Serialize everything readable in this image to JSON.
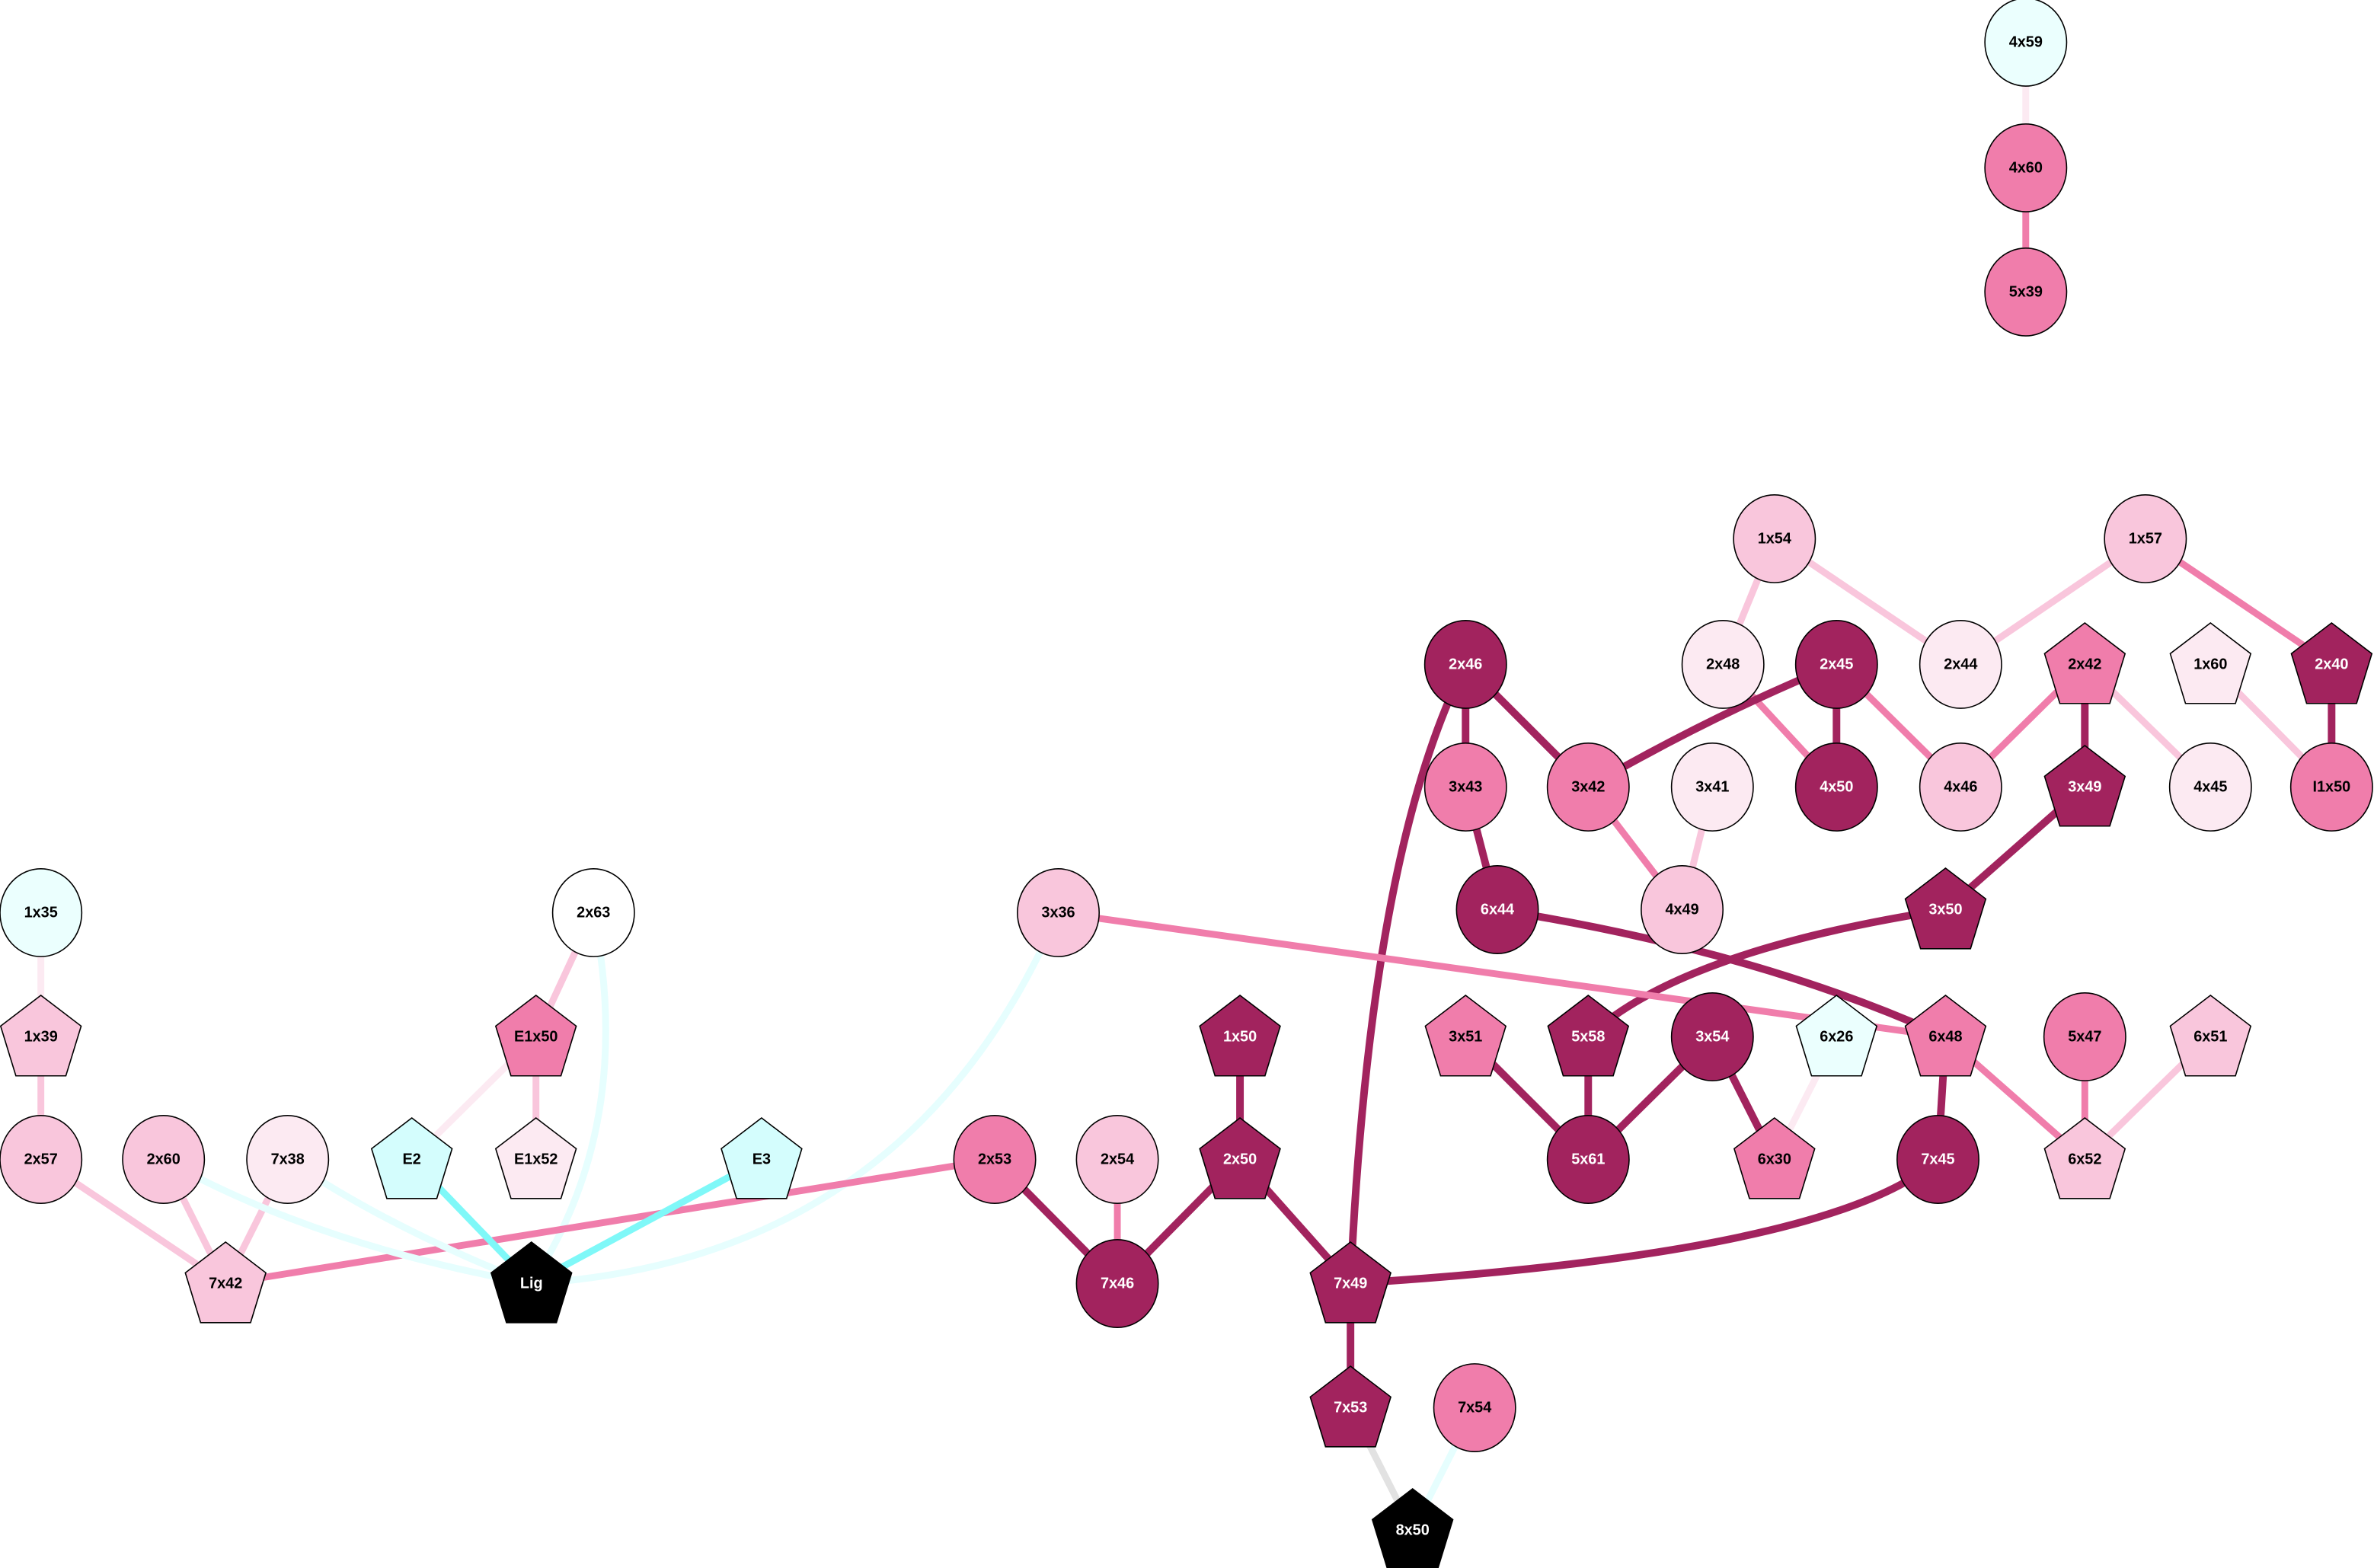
{
  "palette": {
    "dark": "#a2235e",
    "mid": "#f07dab",
    "light": "#f9c6dc",
    "vlight": "#fceaf2",
    "cyanlight": "#ebfffe",
    "cyan": "#d4fdfd",
    "cyanedge": "#7ff8f8",
    "palecyan": "#e6fefe",
    "white": "#ffffff",
    "black": "#000000",
    "grey": "#e2e2e2"
  },
  "nodes": [
    {
      "id": "4x59",
      "shape": "circle",
      "fill": "cyanlight"
    },
    {
      "id": "4x60",
      "shape": "circle",
      "fill": "mid"
    },
    {
      "id": "5x39",
      "shape": "circle",
      "fill": "mid"
    },
    {
      "id": "1x54",
      "shape": "circle",
      "fill": "light"
    },
    {
      "id": "1x57",
      "shape": "circle",
      "fill": "light"
    },
    {
      "id": "2x46",
      "shape": "circle",
      "fill": "dark"
    },
    {
      "id": "2x48",
      "shape": "circle",
      "fill": "vlight"
    },
    {
      "id": "2x45",
      "shape": "circle",
      "fill": "dark"
    },
    {
      "id": "2x44",
      "shape": "circle",
      "fill": "vlight"
    },
    {
      "id": "2x42",
      "shape": "pentagon",
      "fill": "mid"
    },
    {
      "id": "1x60",
      "shape": "pentagon",
      "fill": "vlight"
    },
    {
      "id": "2x40",
      "shape": "pentagon",
      "fill": "dark"
    },
    {
      "id": "3x43",
      "shape": "circle",
      "fill": "mid"
    },
    {
      "id": "3x42",
      "shape": "circle",
      "fill": "mid"
    },
    {
      "id": "3x41",
      "shape": "circle",
      "fill": "vlight"
    },
    {
      "id": "4x50",
      "shape": "circle",
      "fill": "dark"
    },
    {
      "id": "4x46",
      "shape": "circle",
      "fill": "light"
    },
    {
      "id": "3x49",
      "shape": "pentagon",
      "fill": "dark"
    },
    {
      "id": "4x45",
      "shape": "circle",
      "fill": "vlight"
    },
    {
      "id": "I1x50",
      "shape": "circle",
      "fill": "mid"
    },
    {
      "id": "6x44",
      "shape": "circle",
      "fill": "dark"
    },
    {
      "id": "4x49",
      "shape": "circle",
      "fill": "light"
    },
    {
      "id": "3x50",
      "shape": "pentagon",
      "fill": "dark"
    },
    {
      "id": "1x35",
      "shape": "circle",
      "fill": "cyanlight"
    },
    {
      "id": "2x63",
      "shape": "circle",
      "fill": "white"
    },
    {
      "id": "3x36",
      "shape": "circle",
      "fill": "light"
    },
    {
      "id": "1x39",
      "shape": "pentagon",
      "fill": "light"
    },
    {
      "id": "E1x50",
      "shape": "pentagon",
      "fill": "mid"
    },
    {
      "id": "1x50",
      "shape": "pentagon",
      "fill": "dark"
    },
    {
      "id": "3x51",
      "shape": "pentagon",
      "fill": "mid"
    },
    {
      "id": "5x58",
      "shape": "pentagon",
      "fill": "dark"
    },
    {
      "id": "3x54",
      "shape": "circle",
      "fill": "dark"
    },
    {
      "id": "6x26",
      "shape": "pentagon",
      "fill": "cyanlight"
    },
    {
      "id": "6x48",
      "shape": "pentagon",
      "fill": "mid"
    },
    {
      "id": "5x47",
      "shape": "circle",
      "fill": "mid"
    },
    {
      "id": "6x51",
      "shape": "pentagon",
      "fill": "light"
    },
    {
      "id": "2x57",
      "shape": "circle",
      "fill": "light"
    },
    {
      "id": "2x60",
      "shape": "circle",
      "fill": "light"
    },
    {
      "id": "7x38",
      "shape": "circle",
      "fill": "vlight"
    },
    {
      "id": "E2",
      "shape": "pentagon",
      "fill": "cyan"
    },
    {
      "id": "E1x52",
      "shape": "pentagon",
      "fill": "vlight"
    },
    {
      "id": "E3",
      "shape": "pentagon",
      "fill": "cyan"
    },
    {
      "id": "2x53",
      "shape": "circle",
      "fill": "mid"
    },
    {
      "id": "2x54",
      "shape": "circle",
      "fill": "light"
    },
    {
      "id": "2x50",
      "shape": "pentagon",
      "fill": "dark"
    },
    {
      "id": "5x61",
      "shape": "circle",
      "fill": "dark"
    },
    {
      "id": "6x30",
      "shape": "pentagon",
      "fill": "mid"
    },
    {
      "id": "7x45",
      "shape": "circle",
      "fill": "dark"
    },
    {
      "id": "6x52",
      "shape": "pentagon",
      "fill": "light"
    },
    {
      "id": "7x42",
      "shape": "pentagon",
      "fill": "light"
    },
    {
      "id": "Lig",
      "shape": "pentagon",
      "fill": "black"
    },
    {
      "id": "7x46",
      "shape": "circle",
      "fill": "dark"
    },
    {
      "id": "7x49",
      "shape": "pentagon",
      "fill": "dark"
    },
    {
      "id": "7x53",
      "shape": "pentagon",
      "fill": "dark"
    },
    {
      "id": "7x54",
      "shape": "circle",
      "fill": "mid"
    },
    {
      "id": "8x50",
      "shape": "pentagon",
      "fill": "black"
    }
  ],
  "edges": [
    {
      "from": "4x59",
      "to": "4x60",
      "color": "vlight"
    },
    {
      "from": "4x60",
      "to": "5x39",
      "color": "mid"
    },
    {
      "from": "1x54",
      "to": "2x48",
      "color": "light"
    },
    {
      "from": "1x54",
      "to": "2x44",
      "color": "light"
    },
    {
      "from": "1x57",
      "to": "2x44",
      "color": "light"
    },
    {
      "from": "1x57",
      "to": "2x40",
      "color": "mid"
    },
    {
      "from": "2x46",
      "to": "3x43",
      "color": "dark"
    },
    {
      "from": "2x46",
      "to": "3x42",
      "color": "dark"
    },
    {
      "from": "2x46",
      "to": "7x49",
      "color": "dark"
    },
    {
      "from": "2x48",
      "to": "4x50",
      "color": "mid"
    },
    {
      "from": "2x45",
      "to": "3x42",
      "color": "dark"
    },
    {
      "from": "2x45",
      "to": "4x50",
      "color": "dark"
    },
    {
      "from": "2x45",
      "to": "4x46",
      "color": "mid"
    },
    {
      "from": "2x42",
      "to": "4x46",
      "color": "mid"
    },
    {
      "from": "2x42",
      "to": "3x49",
      "color": "dark"
    },
    {
      "from": "2x42",
      "to": "4x45",
      "color": "light"
    },
    {
      "from": "1x60",
      "to": "I1x50",
      "color": "light"
    },
    {
      "from": "2x40",
      "to": "I1x50",
      "color": "dark"
    },
    {
      "from": "3x43",
      "to": "6x44",
      "color": "dark"
    },
    {
      "from": "3x42",
      "to": "4x49",
      "color": "mid"
    },
    {
      "from": "3x41",
      "to": "4x49",
      "color": "light"
    },
    {
      "from": "3x49",
      "to": "3x50",
      "color": "dark"
    },
    {
      "from": "6x44",
      "to": "6x48",
      "color": "dark"
    },
    {
      "from": "3x50",
      "to": "5x58",
      "color": "dark"
    },
    {
      "from": "3x36",
      "to": "6x48",
      "color": "mid"
    },
    {
      "from": "3x36",
      "to": "Lig",
      "color": "palecyan"
    },
    {
      "from": "1x35",
      "to": "1x39",
      "color": "vlight"
    },
    {
      "from": "1x39",
      "to": "2x57",
      "color": "light"
    },
    {
      "from": "2x63",
      "to": "E1x50",
      "color": "light"
    },
    {
      "from": "2x63",
      "to": "Lig",
      "color": "palecyan"
    },
    {
      "from": "E1x50",
      "to": "E2",
      "color": "vlight"
    },
    {
      "from": "E1x50",
      "to": "E1x52",
      "color": "light"
    },
    {
      "from": "3x51",
      "to": "5x61",
      "color": "dark"
    },
    {
      "from": "5x58",
      "to": "5x61",
      "color": "dark"
    },
    {
      "from": "3x54",
      "to": "5x61",
      "color": "dark"
    },
    {
      "from": "3x54",
      "to": "6x30",
      "color": "dark"
    },
    {
      "from": "6x26",
      "to": "6x30",
      "color": "vlight"
    },
    {
      "from": "6x48",
      "to": "7x45",
      "color": "dark"
    },
    {
      "from": "6x48",
      "to": "6x52",
      "color": "mid"
    },
    {
      "from": "5x47",
      "to": "6x52",
      "color": "mid"
    },
    {
      "from": "6x51",
      "to": "6x52",
      "color": "light"
    },
    {
      "from": "1x50",
      "to": "2x50",
      "color": "dark"
    },
    {
      "from": "2x53",
      "to": "7x46",
      "color": "dark"
    },
    {
      "from": "2x54",
      "to": "7x46",
      "color": "mid"
    },
    {
      "from": "2x50",
      "to": "7x46",
      "color": "dark"
    },
    {
      "from": "2x50",
      "to": "7x49",
      "color": "dark"
    },
    {
      "from": "7x45",
      "to": "7x49",
      "color": "dark"
    },
    {
      "from": "2x53",
      "to": "7x42",
      "color": "mid"
    },
    {
      "from": "2x57",
      "to": "7x42",
      "color": "light"
    },
    {
      "from": "2x60",
      "to": "7x42",
      "color": "light"
    },
    {
      "from": "7x38",
      "to": "7x42",
      "color": "light"
    },
    {
      "from": "2x60",
      "to": "Lig",
      "color": "palecyan"
    },
    {
      "from": "7x38",
      "to": "Lig",
      "color": "palecyan"
    },
    {
      "from": "E2",
      "to": "Lig",
      "color": "cyanedge"
    },
    {
      "from": "E3",
      "to": "Lig",
      "color": "cyanedge"
    },
    {
      "from": "7x49",
      "to": "7x53",
      "color": "dark"
    },
    {
      "from": "7x53",
      "to": "8x50",
      "color": "grey"
    },
    {
      "from": "7x54",
      "to": "8x50",
      "color": "palecyan"
    }
  ]
}
